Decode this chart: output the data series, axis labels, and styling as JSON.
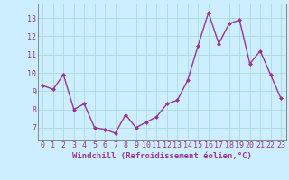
{
  "x": [
    0,
    1,
    2,
    3,
    4,
    5,
    6,
    7,
    8,
    9,
    10,
    11,
    12,
    13,
    14,
    15,
    16,
    17,
    18,
    19,
    20,
    21,
    22,
    23
  ],
  "y": [
    9.3,
    9.1,
    9.9,
    8.0,
    8.3,
    7.0,
    6.9,
    6.7,
    7.7,
    7.0,
    7.3,
    7.6,
    8.3,
    8.5,
    9.6,
    11.5,
    13.3,
    11.6,
    12.7,
    12.9,
    10.5,
    11.2,
    9.9,
    8.6
  ],
  "line_color": "#993399",
  "marker": "D",
  "marker_size": 2,
  "line_width": 1.0,
  "bg_color": "#cceeff",
  "grid_color": "#aadddd",
  "xlabel": "Windchill (Refroidissement éolien,°C)",
  "xlabel_fontsize": 6.5,
  "tick_fontsize": 6,
  "yticks": [
    7,
    8,
    9,
    10,
    11,
    12,
    13
  ],
  "ylim": [
    6.3,
    13.8
  ],
  "xlim": [
    -0.5,
    23.5
  ],
  "xticks": [
    0,
    1,
    2,
    3,
    4,
    5,
    6,
    7,
    8,
    9,
    10,
    11,
    12,
    13,
    14,
    15,
    16,
    17,
    18,
    19,
    20,
    21,
    22,
    23
  ]
}
